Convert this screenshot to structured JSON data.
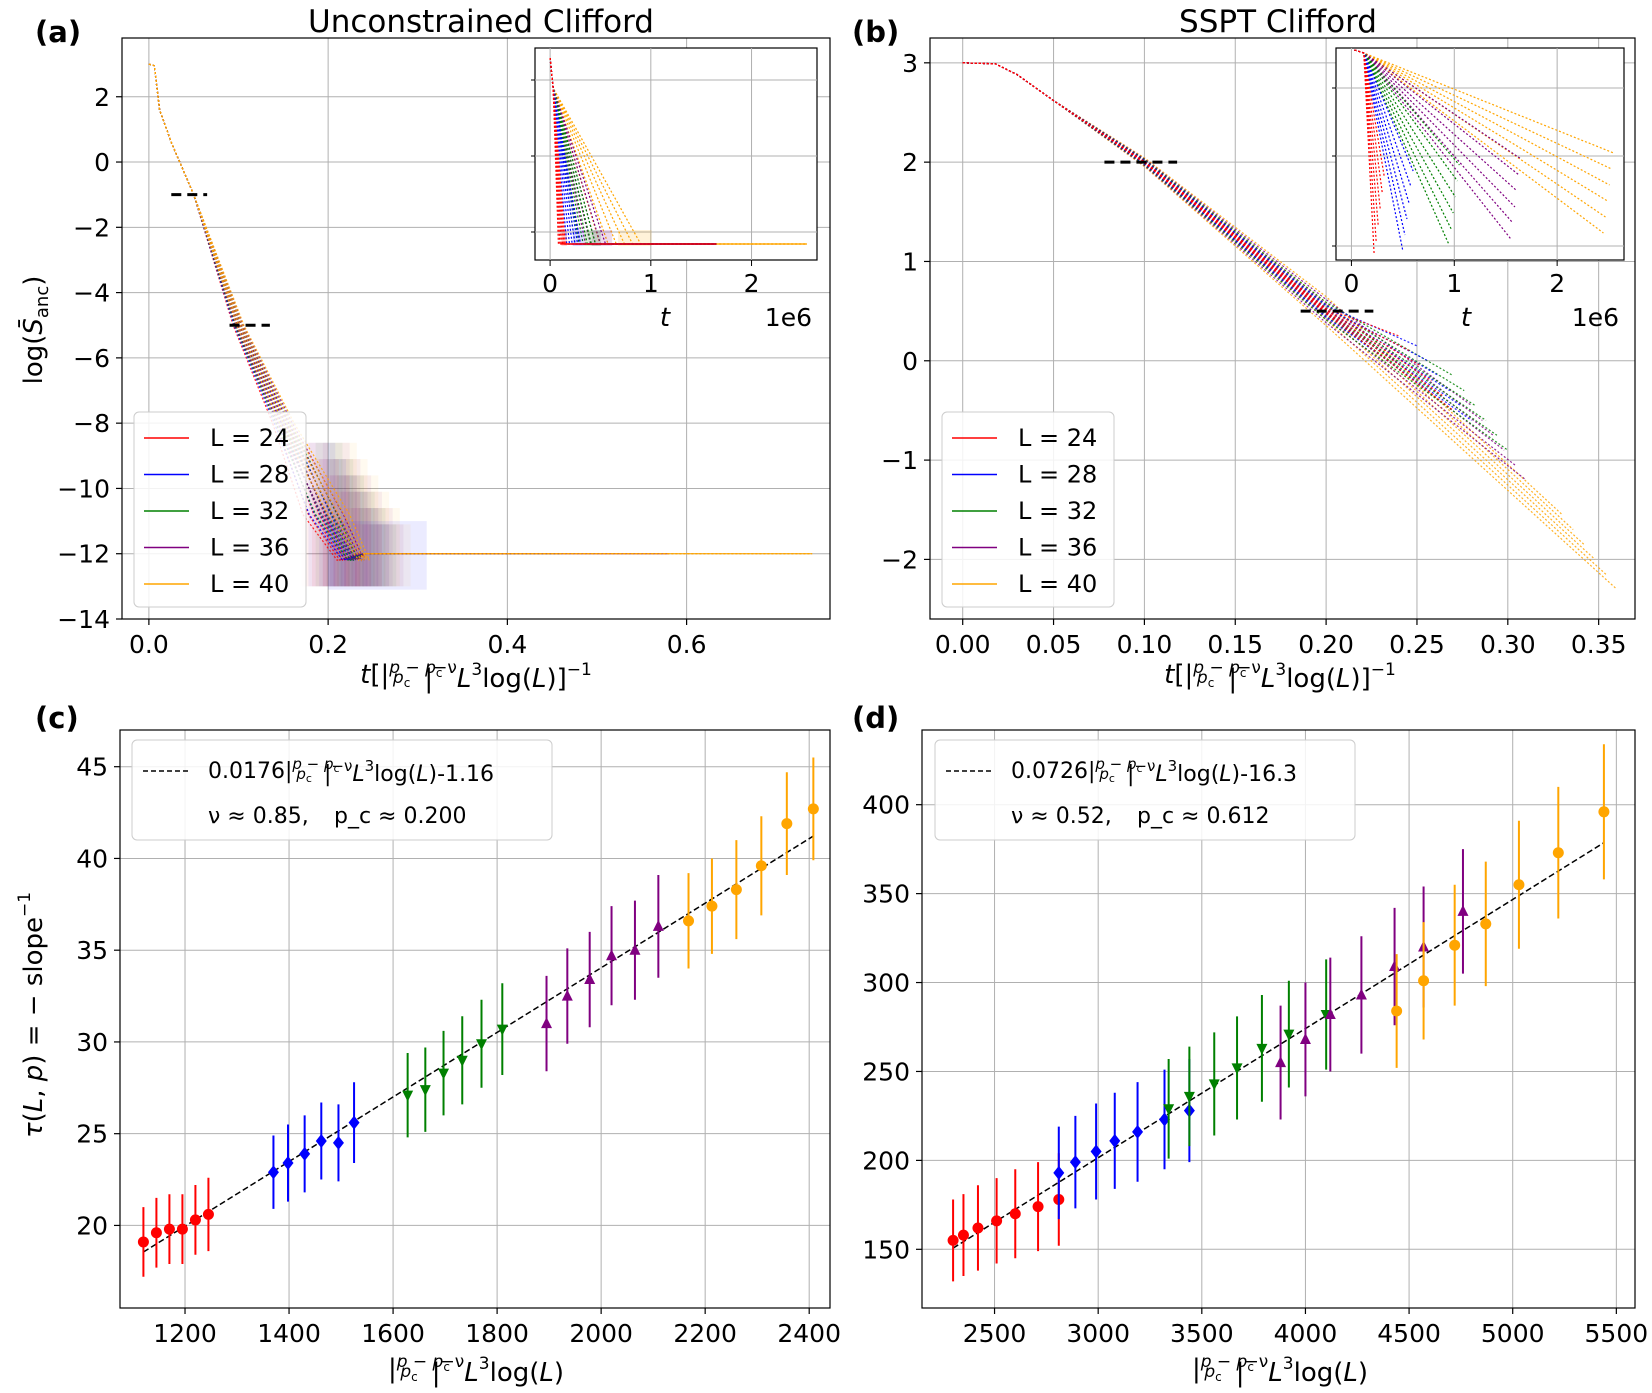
{
  "figure": {
    "panel_labels": [
      "(a)",
      "(b)",
      "(c)",
      "(d)"
    ],
    "top_ylabel": "log(S̄_anc)",
    "top_xlabel": "t[|(p−p_c)/p_c|^{−ν} L³ log(L)]^{−1}",
    "bottom_ylabel": "τ(L, p) = −slope^{−1}",
    "bottom_xlabel": "|(p−p_c)/p_c|^{−ν} L³ log(L)",
    "inset_xlabel": "t",
    "inset_exponent": "1e6",
    "legend_entries": [
      "L = 24",
      "L = 28",
      "L = 32",
      "L = 36",
      "L = 40"
    ],
    "series_colors": [
      "#ff0000",
      "#0000ff",
      "#008000",
      "#800080",
      "#ffa500"
    ]
  },
  "chart_data": [
    {
      "type": "line",
      "title": "Unconstrained Clifford",
      "xlim": [
        -0.03,
        0.76
      ],
      "ylim": [
        -14,
        3.8
      ],
      "xticks": [
        "0.0",
        "0.2",
        "0.4",
        "0.6"
      ],
      "xtick_values": [
        0.0,
        0.2,
        0.4,
        0.6
      ],
      "yticks": [
        "2",
        "0",
        "−2",
        "−4",
        "−6",
        "−8",
        "−10",
        "−12",
        "−14"
      ],
      "ytick_values": [
        2,
        0,
        -2,
        -4,
        -6,
        -8,
        -10,
        -12,
        -14
      ],
      "plateau_start": 3.0,
      "floor": -12.0,
      "x_floor_reached": 0.21,
      "x_tail_end": [
        0.27,
        0.41,
        0.46,
        0.58,
        0.74
      ],
      "dashes": [
        {
          "x": [
            0.025,
            0.065
          ],
          "y": -1.0
        },
        {
          "x": [
            0.09,
            0.135
          ],
          "y": -5.0
        }
      ],
      "legend_location": "lower-left",
      "inset": {
        "xlim": [
          -0.15,
          2.65
        ],
        "xticks": [
          "0",
          "1",
          "2"
        ],
        "xtick_values": [
          0,
          1,
          2
        ],
        "end_times": [
          0.15,
          0.3,
          0.45,
          0.55,
          0.9
        ],
        "floor_end": [
          1.65,
          1.65,
          1.65,
          1.65,
          2.55
        ]
      }
    },
    {
      "type": "line",
      "title": "SSPT Clifford",
      "xlim": [
        -0.018,
        0.37
      ],
      "ylim": [
        -2.6,
        3.25
      ],
      "xticks": [
        "0.00",
        "0.05",
        "0.10",
        "0.15",
        "0.20",
        "0.25",
        "0.30",
        "0.35"
      ],
      "xtick_values": [
        0.0,
        0.05,
        0.1,
        0.15,
        0.2,
        0.25,
        0.3,
        0.35
      ],
      "yticks": [
        "3",
        "2",
        "1",
        "0",
        "−1",
        "−2"
      ],
      "ytick_values": [
        3,
        2,
        1,
        0,
        -1,
        -2
      ],
      "plateau_start": 3.0,
      "curve_end_x": [
        0.27,
        0.28,
        0.3,
        0.31,
        0.36
      ],
      "curve_end_y": [
        -0.5,
        -0.6,
        -0.9,
        -1.2,
        -2.3
      ],
      "dashes": [
        {
          "x": [
            0.078,
            0.118
          ],
          "y": 2.0
        },
        {
          "x": [
            0.186,
            0.226
          ],
          "y": 0.5
        }
      ],
      "legend_location": "lower-left",
      "inset": {
        "xlim": [
          -0.15,
          2.65
        ],
        "xticks": [
          "0",
          "1",
          "2"
        ],
        "xtick_values": [
          0,
          1,
          2
        ],
        "end_times": [
          0.32,
          0.6,
          1.05,
          1.65,
          2.55
        ]
      }
    },
    {
      "type": "scatter",
      "xlim": [
        1075,
        2440
      ],
      "ylim": [
        15.5,
        47
      ],
      "xticks": [
        "1200",
        "1400",
        "1600",
        "1800",
        "2000",
        "2200",
        "2400"
      ],
      "xtick_values": [
        1200,
        1400,
        1600,
        1800,
        2000,
        2200,
        2400
      ],
      "yticks": [
        "20",
        "25",
        "30",
        "35",
        "40",
        "45"
      ],
      "ytick_values": [
        20,
        25,
        30,
        35,
        40,
        45
      ],
      "fit_label": "0.0176|(p−p_c)/p_c|^{−ν}L³log(L)-1.16",
      "fit_slope": 0.0176,
      "fit_intercept": -1.16,
      "fit_x_range": [
        1120,
        2410
      ],
      "params_nu": "ν ≈ 0.85,",
      "params_pc": "p_c ≈ 0.200",
      "series": [
        {
          "name": "L = 24",
          "marker": "circle",
          "x": [
            1120,
            1145,
            1170,
            1195,
            1220,
            1245
          ],
          "y": [
            19.1,
            19.6,
            19.8,
            19.8,
            20.3,
            20.6
          ],
          "err": [
            1.9,
            1.9,
            1.9,
            1.9,
            1.9,
            2.0
          ]
        },
        {
          "name": "L = 28",
          "marker": "diamond",
          "x": [
            1370,
            1398,
            1430,
            1462,
            1495,
            1525
          ],
          "y": [
            22.9,
            23.4,
            23.9,
            24.6,
            24.5,
            25.6
          ],
          "err": [
            2.0,
            2.1,
            2.1,
            2.1,
            2.1,
            2.2
          ]
        },
        {
          "name": "L = 32",
          "marker": "triangle-down",
          "x": [
            1628,
            1662,
            1697,
            1733,
            1770,
            1810
          ],
          "y": [
            27.1,
            27.4,
            28.3,
            29.0,
            29.9,
            30.7
          ],
          "err": [
            2.3,
            2.3,
            2.3,
            2.4,
            2.4,
            2.5
          ]
        },
        {
          "name": "L = 36",
          "marker": "triangle-up",
          "x": [
            1895,
            1935,
            1978,
            2020,
            2065,
            2110
          ],
          "y": [
            31.0,
            32.5,
            33.4,
            34.7,
            35.0,
            36.3
          ],
          "err": [
            2.6,
            2.6,
            2.6,
            2.7,
            2.7,
            2.8
          ]
        },
        {
          "name": "L = 40",
          "marker": "circle",
          "x": [
            2168,
            2213,
            2260,
            2308,
            2357,
            2408
          ],
          "y": [
            36.6,
            37.4,
            38.3,
            39.6,
            41.9,
            42.7
          ],
          "err": [
            2.6,
            2.6,
            2.7,
            2.7,
            2.8,
            2.8
          ]
        }
      ]
    },
    {
      "type": "scatter",
      "xlim": [
        2150,
        5590
      ],
      "ylim": [
        117,
        442
      ],
      "xticks": [
        "2500",
        "3000",
        "3500",
        "4000",
        "4500",
        "5000",
        "5500"
      ],
      "xtick_values": [
        2500,
        3000,
        3500,
        4000,
        4500,
        5000,
        5500
      ],
      "yticks": [
        "150",
        "200",
        "250",
        "300",
        "350",
        "400"
      ],
      "ytick_values": [
        150,
        200,
        250,
        300,
        350,
        400
      ],
      "fit_label": "0.0726|(p−p_c)/p_c|^{−ν}L³log(L)-16.3",
      "fit_slope": 0.0726,
      "fit_intercept": -16.3,
      "fit_x_range": [
        2300,
        5440
      ],
      "params_nu": "ν ≈ 0.52,",
      "params_pc": "p_c ≈ 0.612",
      "series": [
        {
          "name": "L = 24",
          "marker": "circle",
          "x": [
            2300,
            2350,
            2420,
            2510,
            2600,
            2710,
            2810
          ],
          "y": [
            155,
            158,
            162,
            166,
            170,
            174,
            178
          ],
          "err": [
            23,
            23,
            24,
            24,
            25,
            25,
            26
          ]
        },
        {
          "name": "L = 28",
          "marker": "diamond",
          "x": [
            2810,
            2890,
            2990,
            3080,
            3190,
            3320,
            3440
          ],
          "y": [
            193,
            199,
            205,
            211,
            216,
            223,
            228
          ],
          "err": [
            26,
            26,
            27,
            27,
            28,
            28,
            29
          ]
        },
        {
          "name": "L = 32",
          "marker": "triangle-down",
          "x": [
            3340,
            3440,
            3560,
            3670,
            3790,
            3920,
            4100
          ],
          "y": [
            229,
            236,
            243,
            252,
            263,
            271,
            282
          ],
          "err": [
            28,
            28,
            29,
            29,
            30,
            30,
            31
          ]
        },
        {
          "name": "L = 36",
          "marker": "triangle-up",
          "x": [
            3880,
            4000,
            4120,
            4270,
            4430,
            4570,
            4760
          ],
          "y": [
            255,
            268,
            282,
            293,
            309,
            320,
            340
          ],
          "err": [
            32,
            32,
            32,
            33,
            33,
            34,
            35
          ]
        },
        {
          "name": "L = 40",
          "marker": "circle",
          "x": [
            4440,
            4570,
            4720,
            4870,
            5030,
            5220,
            5440
          ],
          "y": [
            284,
            301,
            321,
            333,
            355,
            373,
            396
          ],
          "err": [
            32,
            33,
            34,
            35,
            36,
            37,
            38
          ]
        }
      ]
    }
  ]
}
